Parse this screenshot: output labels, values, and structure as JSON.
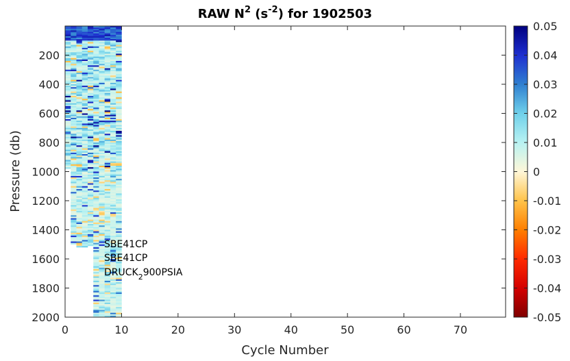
{
  "chart_data": {
    "type": "heatmap",
    "title": {
      "prefix": "RAW N",
      "sup1": "2",
      "mid": " (s",
      "sup2": "-2",
      "suffix": ") for 1902503"
    },
    "xlabel": "Cycle Number",
    "ylabel": "Pressure (db)",
    "xlim": [
      0,
      78
    ],
    "ylim": [
      2000,
      0
    ],
    "y_reversed": true,
    "xticks": [
      0,
      10,
      20,
      30,
      40,
      50,
      60,
      70
    ],
    "yticks": [
      200,
      400,
      600,
      800,
      1000,
      1200,
      1400,
      1600,
      1800,
      2000
    ],
    "grid": false,
    "colorbar": {
      "limits": [
        -0.05,
        0.05
      ],
      "ticks": [
        "0.05",
        "0.04",
        "0.03",
        "0.02",
        "0.01",
        "0",
        "-0.01",
        "-0.02",
        "-0.03",
        "-0.04",
        "-0.05"
      ],
      "colors": [
        "#7f0000",
        "#d40000",
        "#ff2a00",
        "#ff7f00",
        "#ffc34a",
        "#fff7d8",
        "#b8f2f2",
        "#6fd0ea",
        "#2f7fd0",
        "#1e2fd0",
        "#00007f"
      ]
    },
    "profiles": [
      {
        "cycle": 1,
        "pmin": 0,
        "pmax": 980
      },
      {
        "cycle": 2,
        "pmin": 0,
        "pmax": 1500
      },
      {
        "cycle": 3,
        "pmin": 0,
        "pmax": 1520
      },
      {
        "cycle": 4,
        "pmin": 0,
        "pmax": 1520
      },
      {
        "cycle": 5,
        "pmin": 0,
        "pmax": 1510
      },
      {
        "cycle": 6,
        "pmin": 0,
        "pmax": 2000
      },
      {
        "cycle": 7,
        "pmin": 0,
        "pmax": 2000
      },
      {
        "cycle": 8,
        "pmin": 0,
        "pmax": 2000
      },
      {
        "cycle": 9,
        "pmin": 0,
        "pmax": 2000
      },
      {
        "cycle": 10,
        "pmin": 0,
        "pmax": 2000
      }
    ],
    "near_surface_value": 0.045,
    "annotations": {
      "line1": "SBE41CP",
      "line2": "SBE41CP",
      "line3_main": "DRUCK",
      "line3_sub": "2",
      "line3_rest": "900PSIA"
    }
  }
}
